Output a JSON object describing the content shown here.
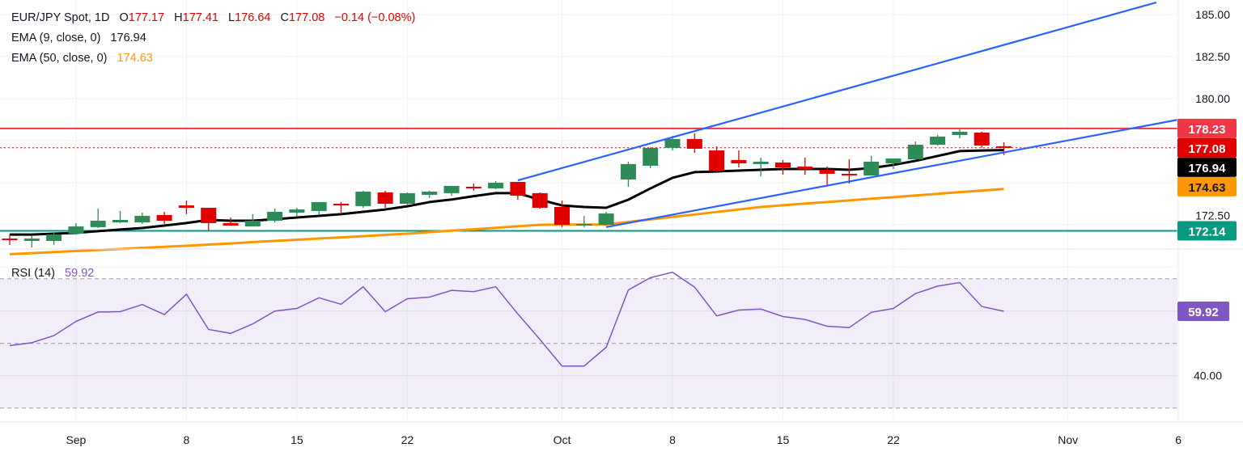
{
  "legend": {
    "symbol": "EUR/JPY Spot, 1D",
    "o_label": "O",
    "o_value": "177.17",
    "h_label": "H",
    "h_value": "177.41",
    "l_label": "L",
    "l_value": "176.64",
    "c_label": "C",
    "c_value": "177.08",
    "change": "−0.14 (−0.08%)",
    "ema9_label": "EMA (9, close, 0)",
    "ema9_value": "176.94",
    "ema50_label": "EMA (50, close, 0)",
    "ema50_value": "174.63",
    "rsi_label": "RSI (14)",
    "rsi_value": "59.92"
  },
  "colors": {
    "up": "#2e8b57",
    "down": "#e00000",
    "ema9": "#000000",
    "ema50": "#ff9800",
    "trend": "#2962ff",
    "resistance": "#f23645",
    "support": "#089981",
    "rsi": "#7e57c2",
    "last": "#e00000"
  },
  "chart_data": [
    {
      "type": "candlestick",
      "title": "EUR/JPY Spot, 1D",
      "ylim": [
        169.9,
        185.8
      ],
      "y_ticks": [
        "185.00",
        "182.50",
        "180.00",
        "172.50"
      ],
      "y_tick_values": [
        185,
        182.5,
        180,
        172.5
      ],
      "grid_values": [
        185,
        182.5,
        180,
        177.5,
        175,
        172.5,
        170
      ],
      "x_ticks": [
        {
          "label": "Sep",
          "bar": 4
        },
        {
          "label": "8",
          "bar": 9
        },
        {
          "label": "15",
          "bar": 14
        },
        {
          "label": "22",
          "bar": 19
        },
        {
          "label": "Oct",
          "bar": 26
        },
        {
          "label": "8",
          "bar": 31
        },
        {
          "label": "15",
          "bar": 36
        },
        {
          "label": "22",
          "bar": 41
        },
        {
          "label": "Nov",
          "bar": 48.9
        },
        {
          "label": "6",
          "bar": 53.9
        }
      ],
      "ohlc": [
        [
          171.68,
          171.92,
          171.3,
          171.59
        ],
        [
          171.54,
          171.83,
          171.15,
          171.68
        ],
        [
          171.54,
          172.07,
          171.3,
          171.92
        ],
        [
          171.97,
          172.6,
          171.92,
          172.4
        ],
        [
          172.36,
          173.46,
          172.31,
          172.74
        ],
        [
          172.64,
          173.32,
          172.6,
          172.79
        ],
        [
          172.64,
          173.22,
          172.55,
          173.03
        ],
        [
          173.08,
          173.27,
          172.55,
          172.74
        ],
        [
          173.65,
          173.94,
          173.13,
          173.51
        ],
        [
          173.51,
          173.51,
          172.16,
          172.6
        ],
        [
          172.6,
          172.93,
          172.45,
          172.45
        ],
        [
          172.4,
          173.13,
          172.4,
          172.74
        ],
        [
          172.74,
          173.46,
          172.64,
          173.27
        ],
        [
          173.22,
          173.51,
          172.98,
          173.41
        ],
        [
          173.32,
          173.85,
          173.08,
          173.85
        ],
        [
          173.75,
          173.85,
          173.13,
          173.65
        ],
        [
          173.61,
          174.52,
          173.51,
          174.47
        ],
        [
          174.42,
          174.52,
          173.51,
          173.75
        ],
        [
          173.75,
          174.42,
          173.7,
          174.38
        ],
        [
          174.28,
          174.52,
          174.09,
          174.47
        ],
        [
          174.38,
          174.81,
          174.23,
          174.81
        ],
        [
          174.76,
          174.95,
          174.52,
          174.71
        ],
        [
          174.66,
          175.1,
          174.62,
          175.0
        ],
        [
          175.05,
          175.05,
          173.99,
          174.23
        ],
        [
          174.38,
          174.42,
          173.46,
          173.51
        ],
        [
          173.56,
          173.94,
          172.36,
          172.5
        ],
        [
          172.5,
          173.03,
          172.36,
          172.55
        ],
        [
          172.5,
          173.27,
          172.45,
          173.17
        ],
        [
          175.19,
          176.25,
          174.76,
          176.11
        ],
        [
          176.01,
          177.12,
          175.87,
          177.07
        ],
        [
          177.07,
          177.79,
          176.92,
          177.6
        ],
        [
          177.6,
          177.93,
          176.78,
          177.02
        ],
        [
          176.92,
          177.16,
          175.63,
          175.72
        ],
        [
          176.35,
          176.92,
          175.91,
          176.15
        ],
        [
          176.11,
          176.49,
          175.38,
          176.25
        ],
        [
          176.2,
          176.35,
          175.48,
          175.91
        ],
        [
          175.96,
          176.49,
          175.48,
          175.82
        ],
        [
          175.77,
          175.96,
          174.86,
          175.53
        ],
        [
          175.53,
          176.39,
          174.95,
          175.48
        ],
        [
          175.43,
          176.59,
          175.43,
          176.25
        ],
        [
          176.15,
          176.44,
          175.82,
          176.44
        ],
        [
          176.39,
          177.45,
          176.39,
          177.26
        ],
        [
          177.26,
          177.84,
          177.21,
          177.74
        ],
        [
          177.84,
          178.17,
          177.64,
          178.03
        ],
        [
          177.98,
          178.03,
          177.07,
          177.21
        ],
        [
          177.17,
          177.41,
          176.64,
          177.08
        ]
      ],
      "series": [
        {
          "name": "EMA (9, close, 0)",
          "values": [
            171.92,
            171.92,
            171.97,
            172.02,
            172.12,
            172.22,
            172.31,
            172.45,
            172.6,
            172.79,
            172.74,
            172.74,
            172.83,
            172.93,
            173.03,
            173.13,
            173.27,
            173.41,
            173.6,
            173.85,
            174.0,
            174.2,
            174.38,
            174.38,
            173.99,
            173.65,
            173.56,
            173.51,
            173.99,
            174.66,
            175.29,
            175.63,
            175.67,
            175.72,
            175.77,
            175.82,
            175.82,
            175.82,
            175.77,
            175.87,
            176.06,
            176.3,
            176.59,
            176.88,
            176.92,
            176.94
          ]
        },
        {
          "name": "EMA (50, close, 0)",
          "values": [
            170.75,
            170.81,
            170.88,
            170.94,
            171.0,
            171.06,
            171.13,
            171.19,
            171.25,
            171.32,
            171.39,
            171.47,
            171.54,
            171.61,
            171.68,
            171.75,
            171.82,
            171.9,
            171.97,
            172.06,
            172.15,
            172.23,
            172.32,
            172.41,
            172.5,
            172.51,
            172.51,
            172.52,
            172.67,
            172.82,
            172.97,
            173.11,
            173.26,
            173.41,
            173.56,
            173.66,
            173.76,
            173.85,
            173.95,
            174.05,
            174.14,
            174.24,
            174.34,
            174.44,
            174.53,
            174.63
          ]
        }
      ],
      "trendlines": [
        {
          "name": "channel-upper",
          "from": {
            "bar": 24,
            "price": 175.14
          },
          "to": {
            "bar": 52.9,
            "price": 185.72
          }
        },
        {
          "name": "channel-lower",
          "from": {
            "bar": 28,
            "price": 172.36
          },
          "to": {
            "bar": 53.9,
            "price": 178.75
          }
        }
      ],
      "hlines": [
        {
          "name": "resistance",
          "price": 178.23,
          "label": "178.23"
        },
        {
          "name": "support",
          "price": 172.14,
          "label": "172.14"
        }
      ],
      "last_price": {
        "price": 177.08,
        "label": "177.08"
      },
      "ema_badges": [
        {
          "name": "ema9",
          "label": "176.94"
        },
        {
          "name": "ema50",
          "label": "174.63"
        }
      ]
    },
    {
      "type": "line",
      "title": "RSI (14)",
      "ylim": [
        27,
        82
      ],
      "y_ticks": [
        "40.00"
      ],
      "y_tick_values": [
        40
      ],
      "bands": [
        70,
        50,
        30
      ],
      "grid_values": [
        60,
        40
      ],
      "values": [
        49.3,
        50.2,
        52.4,
        56.8,
        59.7,
        59.8,
        62.0,
        58.9,
        65.2,
        54.3,
        53.1,
        56.0,
        60.0,
        60.8,
        64.1,
        62.1,
        67.5,
        59.8,
        63.8,
        64.3,
        66.4,
        66.0,
        67.5,
        59.1,
        51.2,
        43.0,
        43.0,
        48.8,
        66.5,
        70.3,
        72.0,
        67.4,
        58.5,
        60.3,
        60.6,
        58.3,
        57.4,
        55.3,
        54.9,
        59.6,
        60.8,
        65.4,
        67.7,
        68.8,
        61.4,
        59.92
      ],
      "last_label": "59.92"
    }
  ]
}
